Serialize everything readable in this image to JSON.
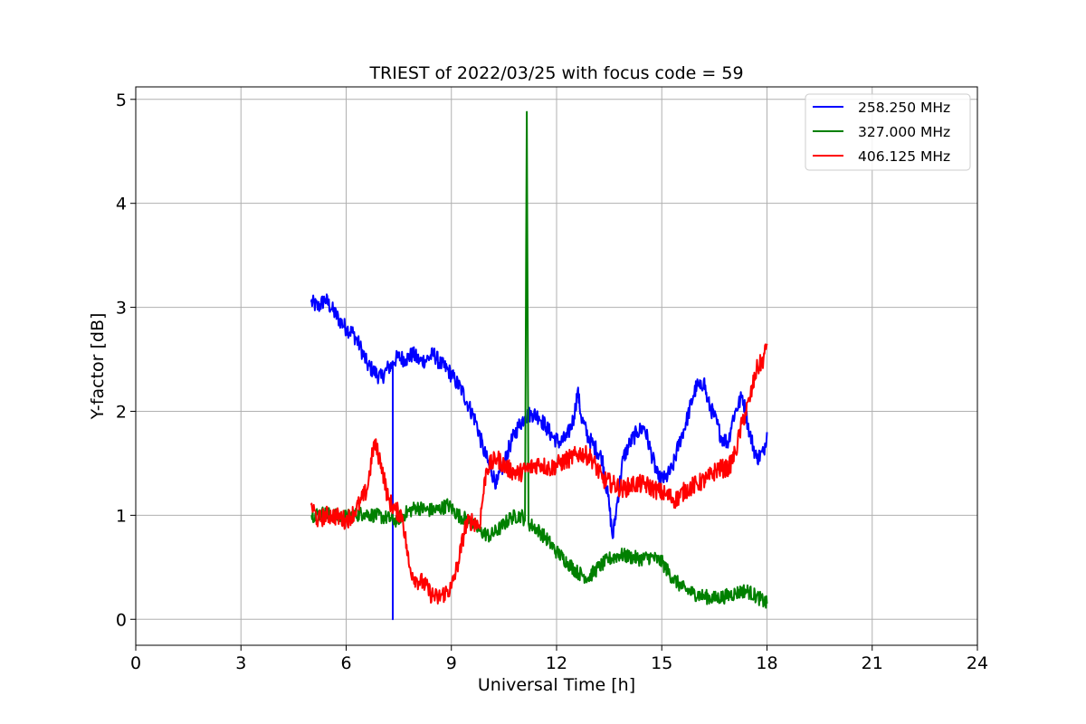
{
  "chart_data": {
    "type": "line",
    "title": "TRIEST of 2022/03/25 with focus code = 59",
    "xlabel": "Universal Time [h]",
    "ylabel": "Y-factor [dB]",
    "xlim": [
      0,
      24
    ],
    "ylim": [
      -0.25,
      5.12
    ],
    "xticks": [
      0,
      3,
      6,
      9,
      12,
      15,
      18,
      21,
      24
    ],
    "yticks": [
      0,
      1,
      2,
      3,
      4,
      5
    ],
    "grid": true,
    "legend_position": "top-right",
    "series": [
      {
        "name": "258.250 MHz",
        "color": "#0000ff",
        "x": [
          5.0,
          5.2,
          5.4,
          5.6,
          5.8,
          6.0,
          6.2,
          6.4,
          6.6,
          6.8,
          7.0,
          7.2,
          7.33,
          7.33,
          7.33,
          7.33,
          7.5,
          7.7,
          7.9,
          8.1,
          8.3,
          8.5,
          8.7,
          8.9,
          9.1,
          9.3,
          9.5,
          9.7,
          9.9,
          10.1,
          10.3,
          10.5,
          10.7,
          10.9,
          11.1,
          11.3,
          11.5,
          11.7,
          11.9,
          12.1,
          12.3,
          12.5,
          12.6,
          12.7,
          12.9,
          13.1,
          13.3,
          13.5,
          13.6,
          13.7,
          13.9,
          14.1,
          14.3,
          14.5,
          14.7,
          14.9,
          15.1,
          15.3,
          15.5,
          15.7,
          15.9,
          16.0,
          16.1,
          16.2,
          16.3,
          16.5,
          16.7,
          16.9,
          17.0,
          17.1,
          17.3,
          17.5,
          17.7,
          17.9,
          18.0
        ],
        "y": [
          3.05,
          3.0,
          3.08,
          2.98,
          2.88,
          2.8,
          2.75,
          2.62,
          2.45,
          2.38,
          2.32,
          2.42,
          2.45,
          0.0,
          2.35,
          2.48,
          2.52,
          2.5,
          2.55,
          2.48,
          2.5,
          2.55,
          2.45,
          2.4,
          2.3,
          2.2,
          2.05,
          1.9,
          1.65,
          1.45,
          1.3,
          1.5,
          1.7,
          1.85,
          1.95,
          1.98,
          1.95,
          1.85,
          1.75,
          1.7,
          1.75,
          1.95,
          2.2,
          1.95,
          1.75,
          1.65,
          1.55,
          1.1,
          0.78,
          1.05,
          1.55,
          1.7,
          1.8,
          1.85,
          1.6,
          1.35,
          1.35,
          1.45,
          1.7,
          1.9,
          2.15,
          2.25,
          2.22,
          2.3,
          2.1,
          1.95,
          1.75,
          1.7,
          1.9,
          2.0,
          2.15,
          1.8,
          1.55,
          1.6,
          1.8
        ]
      },
      {
        "name": "327.000 MHz",
        "color": "#008000",
        "x": [
          5.0,
          5.3,
          5.6,
          5.9,
          6.2,
          6.5,
          6.8,
          7.1,
          7.4,
          7.7,
          8.0,
          8.3,
          8.6,
          8.9,
          9.2,
          9.5,
          9.8,
          10.1,
          10.4,
          10.7,
          11.0,
          11.1,
          11.15,
          11.2,
          11.4,
          11.7,
          12.0,
          12.3,
          12.6,
          12.9,
          13.2,
          13.5,
          13.8,
          14.1,
          14.4,
          14.7,
          15.0,
          15.3,
          15.6,
          15.9,
          16.2,
          16.5,
          16.8,
          17.1,
          17.4,
          17.7,
          18.0
        ],
        "y": [
          1.0,
          1.02,
          1.0,
          0.98,
          1.0,
          1.02,
          1.0,
          0.98,
          0.95,
          1.02,
          1.08,
          1.05,
          1.05,
          1.1,
          1.0,
          0.95,
          0.85,
          0.8,
          0.88,
          0.98,
          1.0,
          0.95,
          4.88,
          0.92,
          0.88,
          0.78,
          0.65,
          0.55,
          0.45,
          0.4,
          0.5,
          0.58,
          0.62,
          0.6,
          0.58,
          0.6,
          0.55,
          0.4,
          0.3,
          0.25,
          0.22,
          0.2,
          0.22,
          0.25,
          0.28,
          0.22,
          0.15
        ]
      },
      {
        "name": "406.125 MHz",
        "color": "#ff0000",
        "x": [
          5.0,
          5.2,
          5.4,
          5.6,
          5.8,
          6.0,
          6.2,
          6.4,
          6.6,
          6.8,
          7.0,
          7.2,
          7.4,
          7.6,
          7.8,
          8.0,
          8.2,
          8.4,
          8.6,
          8.8,
          9.0,
          9.2,
          9.4,
          9.6,
          9.8,
          10.0,
          10.3,
          10.6,
          10.9,
          11.2,
          11.5,
          11.8,
          12.1,
          12.4,
          12.7,
          13.0,
          13.3,
          13.6,
          13.9,
          14.2,
          14.5,
          14.8,
          15.1,
          15.4,
          15.7,
          16.0,
          16.3,
          16.6,
          16.9,
          17.1,
          17.3,
          17.5,
          17.7,
          17.9,
          18.0
        ],
        "y": [
          1.1,
          0.95,
          1.0,
          1.0,
          0.98,
          0.95,
          1.02,
          1.12,
          1.25,
          1.7,
          1.5,
          1.15,
          1.05,
          1.0,
          0.5,
          0.38,
          0.35,
          0.25,
          0.2,
          0.25,
          0.3,
          0.55,
          0.9,
          0.95,
          0.9,
          1.45,
          1.55,
          1.45,
          1.4,
          1.45,
          1.5,
          1.45,
          1.5,
          1.55,
          1.6,
          1.55,
          1.35,
          1.3,
          1.25,
          1.3,
          1.3,
          1.25,
          1.2,
          1.15,
          1.25,
          1.3,
          1.35,
          1.45,
          1.45,
          1.6,
          1.9,
          2.1,
          2.4,
          2.5,
          2.65
        ]
      }
    ]
  }
}
